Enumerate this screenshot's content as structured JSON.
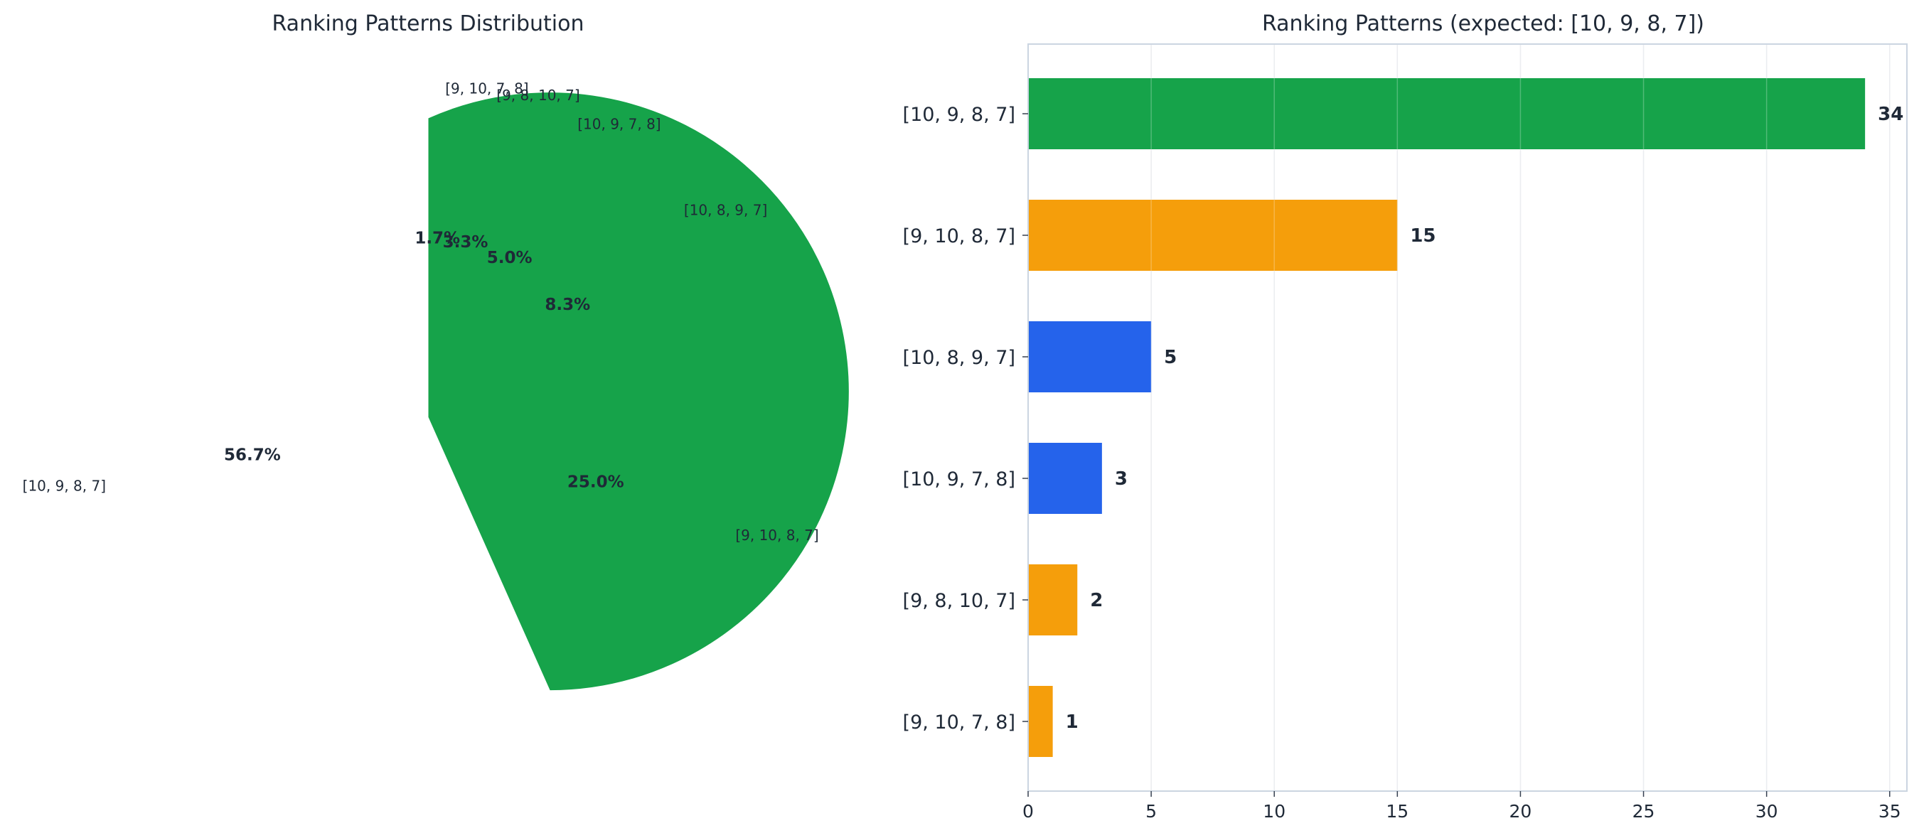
{
  "chart_data": [
    {
      "type": "pie",
      "title": "Ranking Patterns Distribution",
      "slices": [
        {
          "label": "[9, 10, 7, 8]",
          "value": 1,
          "pct_label": "1.7%",
          "color": "#f59e0b"
        },
        {
          "label": "[9, 8, 10, 7]",
          "value": 2,
          "pct_label": "3.3%",
          "color": "#f59e0b"
        },
        {
          "label": "[10, 9, 7, 8]",
          "value": 3,
          "pct_label": "5.0%",
          "color": "#2563eb"
        },
        {
          "label": "[10, 8, 9, 7]",
          "value": 5,
          "pct_label": "8.3%",
          "color": "#2563eb"
        },
        {
          "label": "[9, 10, 8, 7]",
          "value": 15,
          "pct_label": "25.0%",
          "color": "#f59e0b"
        },
        {
          "label": "[10, 9, 8, 7]",
          "value": 34,
          "pct_label": "56.7%",
          "color": "#16a34a"
        }
      ]
    },
    {
      "type": "bar",
      "orientation": "horizontal",
      "title": "Ranking Patterns (expected: [10, 9, 8, 7])",
      "categories": [
        "[10, 9, 8, 7]",
        "[9, 10, 8, 7]",
        "[10, 8, 9, 7]",
        "[10, 9, 7, 8]",
        "[9, 8, 10, 7]",
        "[9, 10, 7, 8]"
      ],
      "values": [
        34,
        15,
        5,
        3,
        2,
        1
      ],
      "value_labels": [
        "34",
        "15",
        "5",
        "3",
        "2",
        "1"
      ],
      "colors": [
        "#16a34a",
        "#f59e0b",
        "#2563eb",
        "#2563eb",
        "#f59e0b",
        "#f59e0b"
      ],
      "xlim": [
        0,
        35.7
      ],
      "xticks": [
        "0",
        "5",
        "10",
        "15",
        "20",
        "25",
        "30",
        "35"
      ],
      "grid": "vertical"
    }
  ]
}
